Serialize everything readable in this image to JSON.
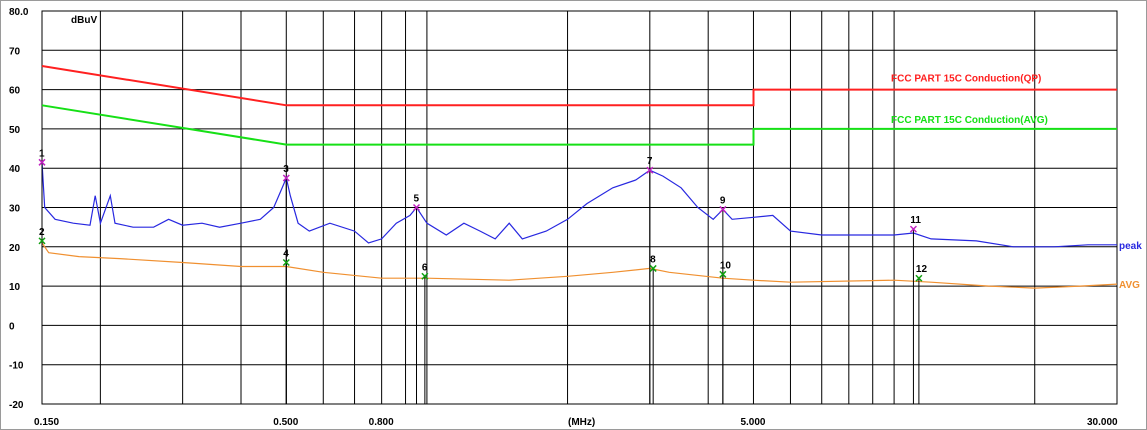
{
  "chart_data": {
    "type": "line",
    "x_scale": "log",
    "ylabel": "dBuV",
    "xlabel": "(MHz)",
    "xlim": [
      0.15,
      30
    ],
    "ylim": [
      -20,
      80
    ],
    "grid": true,
    "y_ticks": [
      "80.0",
      "70",
      "60",
      "50",
      "40",
      "30",
      "20",
      "10",
      "0",
      "-10",
      "-20"
    ],
    "x_tick_labels": [
      {
        "value": 0.15,
        "label": "0.150"
      },
      {
        "value": 0.5,
        "label": "0.500"
      },
      {
        "value": 0.8,
        "label": "0.800"
      },
      {
        "value": 5,
        "label": "5.000"
      },
      {
        "value": 30,
        "label": "30.000"
      }
    ],
    "limit_lines": [
      {
        "name": "FCC PART 15C  Conduction(QP)",
        "color": "#ff2020",
        "points": [
          [
            0.15,
            66
          ],
          [
            0.5,
            56
          ],
          [
            5,
            56
          ],
          [
            5,
            60
          ],
          [
            30,
            60
          ]
        ]
      },
      {
        "name": "FCC PART 15C  Conduction(AVG)",
        "color": "#16e016",
        "points": [
          [
            0.15,
            56
          ],
          [
            0.5,
            46
          ],
          [
            5,
            46
          ],
          [
            5,
            50
          ],
          [
            30,
            50
          ]
        ]
      }
    ],
    "series": [
      {
        "name": "peak",
        "color": "#2828e0",
        "points": [
          [
            0.15,
            41.5
          ],
          [
            0.152,
            30
          ],
          [
            0.16,
            27
          ],
          [
            0.175,
            26
          ],
          [
            0.19,
            25.5
          ],
          [
            0.195,
            33
          ],
          [
            0.2,
            26
          ],
          [
            0.21,
            33
          ],
          [
            0.215,
            26
          ],
          [
            0.235,
            25
          ],
          [
            0.26,
            25
          ],
          [
            0.28,
            27
          ],
          [
            0.3,
            25.5
          ],
          [
            0.33,
            26
          ],
          [
            0.36,
            25
          ],
          [
            0.4,
            26
          ],
          [
            0.44,
            27
          ],
          [
            0.47,
            30
          ],
          [
            0.49,
            35
          ],
          [
            0.5,
            37.5
          ],
          [
            0.51,
            33
          ],
          [
            0.53,
            26
          ],
          [
            0.56,
            24
          ],
          [
            0.62,
            26
          ],
          [
            0.7,
            24
          ],
          [
            0.75,
            21
          ],
          [
            0.8,
            22
          ],
          [
            0.86,
            26
          ],
          [
            0.92,
            28
          ],
          [
            0.95,
            30
          ],
          [
            1.0,
            26
          ],
          [
            1.1,
            23
          ],
          [
            1.2,
            26
          ],
          [
            1.3,
            24
          ],
          [
            1.4,
            22
          ],
          [
            1.5,
            26
          ],
          [
            1.6,
            22
          ],
          [
            1.8,
            24
          ],
          [
            2.0,
            27
          ],
          [
            2.2,
            31
          ],
          [
            2.5,
            35
          ],
          [
            2.8,
            37
          ],
          [
            3.0,
            39.5
          ],
          [
            3.2,
            38
          ],
          [
            3.5,
            35
          ],
          [
            3.8,
            30
          ],
          [
            4.1,
            27
          ],
          [
            4.3,
            29.5
          ],
          [
            4.5,
            27
          ],
          [
            5.0,
            27.5
          ],
          [
            5.5,
            28
          ],
          [
            6.0,
            24
          ],
          [
            7.0,
            23
          ],
          [
            8.0,
            23
          ],
          [
            10.0,
            23
          ],
          [
            11.0,
            23.5
          ],
          [
            12.0,
            22
          ],
          [
            15.0,
            21.5
          ],
          [
            18.0,
            20
          ],
          [
            22.0,
            20
          ],
          [
            26.0,
            20.5
          ],
          [
            30.0,
            20.5
          ]
        ]
      },
      {
        "name": "AVG",
        "color": "#f09030",
        "points": [
          [
            0.15,
            21
          ],
          [
            0.155,
            18.5
          ],
          [
            0.18,
            17.5
          ],
          [
            0.22,
            17
          ],
          [
            0.3,
            16
          ],
          [
            0.4,
            15
          ],
          [
            0.5,
            15
          ],
          [
            0.6,
            13.5
          ],
          [
            0.8,
            12
          ],
          [
            1.0,
            12
          ],
          [
            1.5,
            11.5
          ],
          [
            2.0,
            12.5
          ],
          [
            2.5,
            13.5
          ],
          [
            3.0,
            14.5
          ],
          [
            3.3,
            13.5
          ],
          [
            4.3,
            12
          ],
          [
            5.0,
            11.5
          ],
          [
            6.0,
            11
          ],
          [
            10.0,
            11.5
          ],
          [
            12.0,
            11
          ],
          [
            16.0,
            10
          ],
          [
            20.0,
            9.5
          ],
          [
            25.0,
            10
          ],
          [
            30.0,
            10.5
          ]
        ]
      }
    ],
    "markers": [
      {
        "label": "1",
        "x": 0.15,
        "y": 41.5
      },
      {
        "label": "2",
        "x": 0.15,
        "y": 21.5
      },
      {
        "label": "3",
        "x": 0.5,
        "y": 37.5
      },
      {
        "label": "4",
        "x": 0.5,
        "y": 16
      },
      {
        "label": "5",
        "x": 0.95,
        "y": 30
      },
      {
        "label": "6",
        "x": 0.99,
        "y": 12.5
      },
      {
        "label": "7",
        "x": 3.0,
        "y": 39.5
      },
      {
        "label": "8",
        "x": 3.05,
        "y": 14.5
      },
      {
        "label": "9",
        "x": 4.3,
        "y": 29.5
      },
      {
        "label": "10",
        "x": 4.3,
        "y": 13
      },
      {
        "label": "11",
        "x": 11.0,
        "y": 24.5
      },
      {
        "label": "12",
        "x": 11.3,
        "y": 12
      }
    ]
  }
}
